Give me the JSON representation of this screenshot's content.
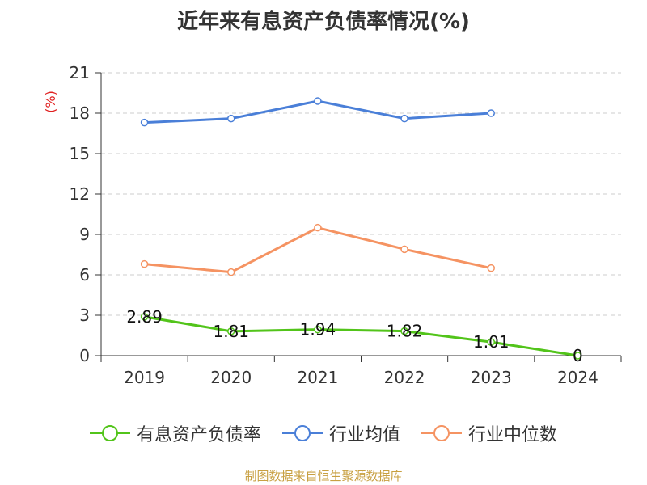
{
  "title": "近年来有息资产负债率情况(%)",
  "source": "制图数据来自恒生聚源数据库",
  "chart_data": {
    "type": "line",
    "title": "近年来有息资产负债率情况(%)",
    "ylabel": "(%)",
    "xlabel": "",
    "categories": [
      "2019",
      "2020",
      "2021",
      "2022",
      "2023",
      "2024"
    ],
    "ylim": [
      0,
      21
    ],
    "yticks": [
      0,
      3,
      6,
      9,
      12,
      15,
      18,
      21
    ],
    "grid": true,
    "legend_position": "bottom",
    "series": [
      {
        "name": "有息资产负债率",
        "color": "#52c41a",
        "values": [
          2.89,
          1.81,
          1.94,
          1.82,
          1.01,
          0
        ],
        "labels": [
          "2.89",
          "1.81",
          "1.94",
          "1.82",
          "1.01",
          "0"
        ]
      },
      {
        "name": "行业均值",
        "color": "#4a7fd8",
        "values": [
          17.3,
          17.6,
          18.9,
          17.6,
          18.0,
          null
        ]
      },
      {
        "name": "行业中位数",
        "color": "#f59362",
        "values": [
          6.8,
          6.2,
          9.5,
          7.9,
          6.5,
          null
        ]
      }
    ]
  }
}
